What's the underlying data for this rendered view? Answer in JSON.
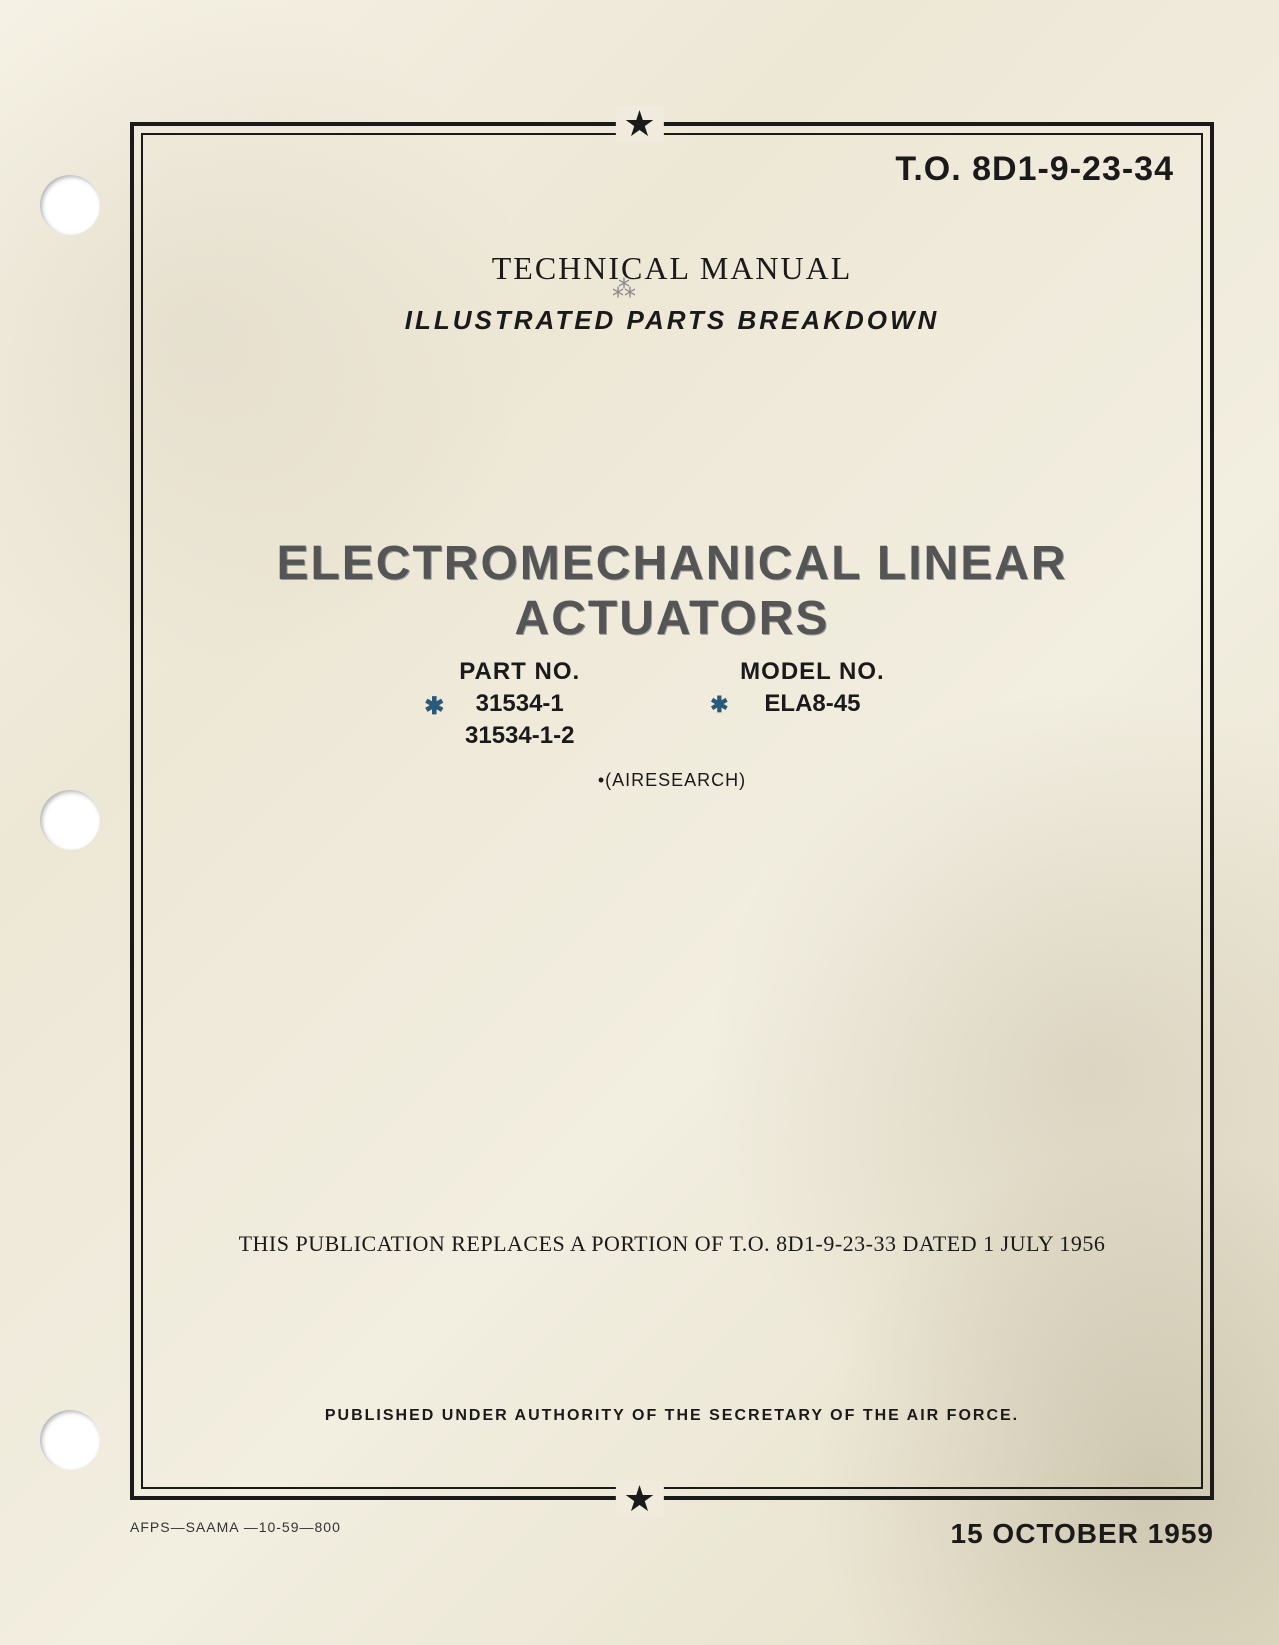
{
  "document": {
    "to_number": "T.O. 8D1-9-23-34",
    "doc_type": "TECHNICAL MANUAL",
    "subtitle": "ILLUSTRATED PARTS BREAKDOWN",
    "main_title": "ELECTROMECHANICAL LINEAR ACTUATORS",
    "part_header": "PART NO.",
    "part_numbers": [
      "31534-1",
      "31534-1-2"
    ],
    "model_header": "MODEL NO.",
    "model_number": "ELA8-45",
    "manufacturer": "•(AIRESEARCH)",
    "replacement_note": "THIS PUBLICATION REPLACES A PORTION OF T.O. 8D1-9-23-33 DATED 1 JULY 1956",
    "authority_note": "PUBLISHED UNDER AUTHORITY OF THE SECRETARY OF THE AIR FORCE.",
    "footer_left": "AFPS—SAAMA —10-59—800",
    "footer_date": "15 OCTOBER 1959"
  },
  "styling": {
    "page_background": "#f0ebdc",
    "text_color": "#1a1a1a",
    "title_color": "#555555",
    "border_color": "#1a1a1a",
    "hand_mark_color": "#2a5a7a",
    "title_fontsize": 48,
    "to_fontsize": 34,
    "heading_fontsize": 32,
    "subtitle_fontsize": 26,
    "body_fontsize": 22,
    "footer_date_fontsize": 28
  }
}
